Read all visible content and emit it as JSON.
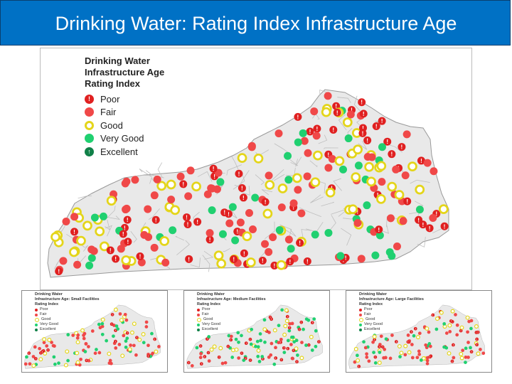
{
  "header": {
    "title": "Drinking Water: Rating Index Infrastructure Age",
    "background_color": "#0071c5",
    "text_color": "#ffffff"
  },
  "main_map": {
    "legend_title_lines": [
      "Drinking Water",
      "Infrastructure Age",
      "Rating Index"
    ],
    "legend": [
      {
        "label": "Poor",
        "symbol": "exclamation-icon",
        "color": "#e02020"
      },
      {
        "label": "Fair",
        "symbol": "dot",
        "color": "#f04848"
      },
      {
        "label": "Good",
        "symbol": "ring",
        "color": "#e4d51a"
      },
      {
        "label": "Very Good",
        "symbol": "dot",
        "color": "#20d070"
      },
      {
        "label": "Excellent",
        "symbol": "up-arrow-icon",
        "color": "#108048"
      }
    ]
  },
  "small_maps": [
    {
      "title_lines": [
        "Drinking Water",
        "Infrastructure Age: Small Facilities",
        "Rating Index"
      ],
      "legend": [
        "Poor",
        "Fair",
        "Good",
        "Very Good",
        "Excellent"
      ]
    },
    {
      "title_lines": [
        "Drinking Water",
        "Infrastructure Age: Medium Facilities",
        "Rating Index"
      ],
      "legend": [
        "Poor",
        "Fair",
        "Good",
        "Very Good",
        "Excellent"
      ]
    },
    {
      "title_lines": [
        "Drinking Water",
        "Infrastructure Age: Large Facilities",
        "Rating Index"
      ],
      "legend": [
        "Poor",
        "Fair",
        "Good",
        "Very Good",
        "Excellent"
      ]
    }
  ],
  "colors": {
    "state_fill": "#e9e9e9",
    "county_line": "#bfbfbf",
    "poor": "#e02020",
    "fair": "#f04848",
    "good": "#e4d51a",
    "very_good": "#20d070",
    "excellent": "#108048"
  }
}
